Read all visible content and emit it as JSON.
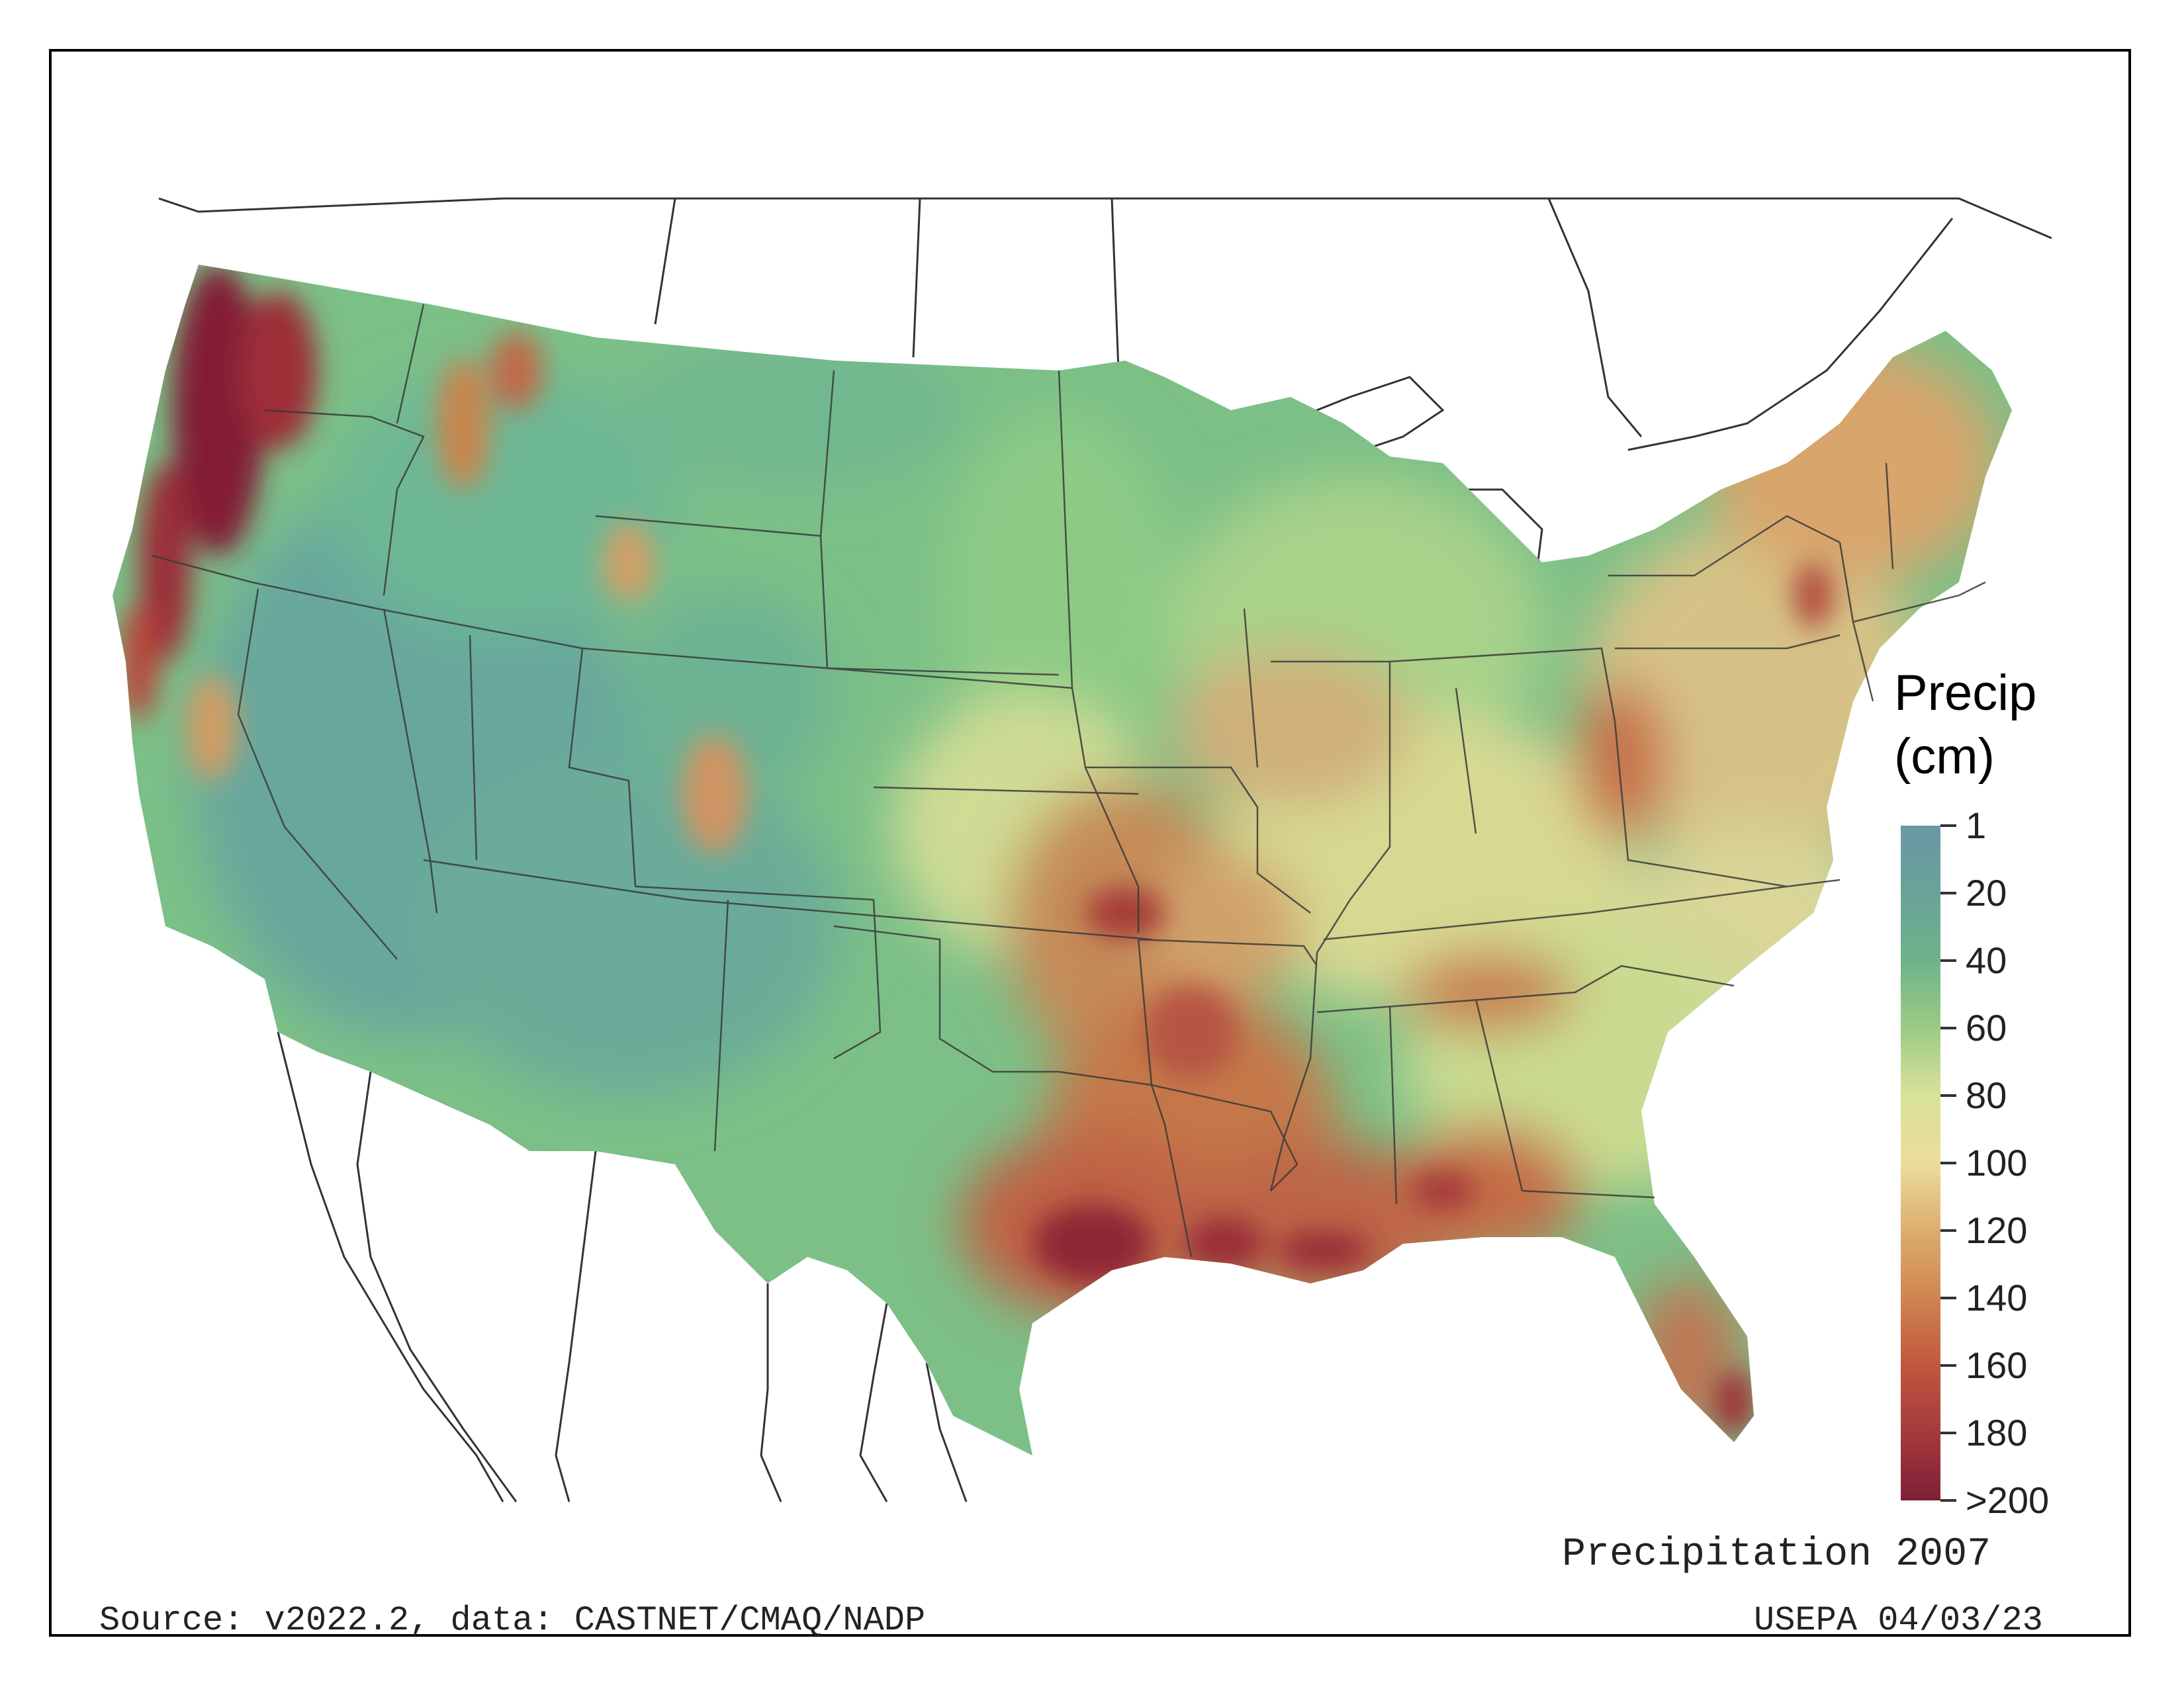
{
  "map": {
    "title": "Precipitation 2007",
    "source": "Source: v2022.2, data: CASTNET/CMAQ/NADP",
    "stamp": "USEPA 04/03/23"
  },
  "legend": {
    "title_line1": "Precip",
    "title_line2": "(cm)",
    "ticks": [
      "1",
      "20",
      "40",
      "60",
      "80",
      "100",
      "120",
      "140",
      "160",
      "180",
      ">200"
    ],
    "gradient_colors": [
      "#6b97a3",
      "#69a398",
      "#6db38a",
      "#9ccb85",
      "#d8e29a",
      "#ecdc9c",
      "#dcae6e",
      "#cf8550",
      "#c0573f",
      "#a53a3d",
      "#7e1f35"
    ]
  },
  "colors": {
    "arid_west": "#6aaa9c",
    "plains": "#79c184",
    "midwest": "#c8da94",
    "wet_south": "#c77444",
    "very_wet": "#8a2233",
    "border_lines": "#333333"
  }
}
